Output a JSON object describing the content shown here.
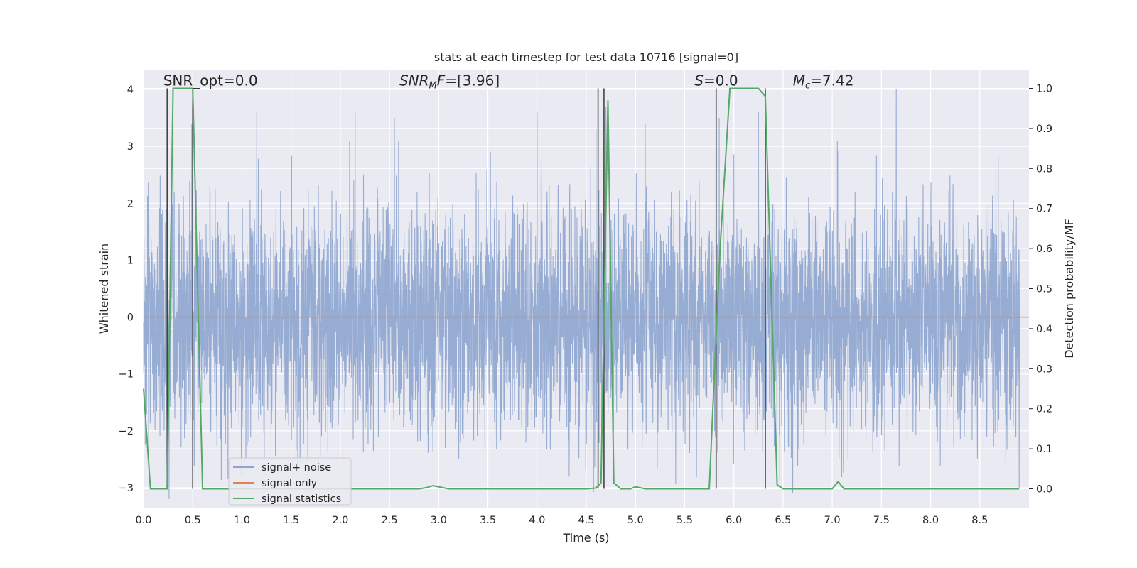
{
  "chart_data": {
    "type": "line",
    "title": "stats at each timestep for test data 10716 [signal=0]",
    "xlabel": "Time (s)",
    "ylabel_left": "Whitened strain",
    "ylabel_right": "Detection probability/MF",
    "xlim": [
      0.0,
      9.0
    ],
    "ylim_left": [
      -3.35,
      4.35
    ],
    "ylim_right": [
      -0.047,
      1.047
    ],
    "x_ticks": [
      "0.0",
      "0.5",
      "1.0",
      "1.5",
      "2.0",
      "2.5",
      "3.0",
      "3.5",
      "4.0",
      "4.5",
      "5.0",
      "5.5",
      "6.0",
      "6.5",
      "7.0",
      "7.5",
      "8.0",
      "8.5"
    ],
    "x_tick_values": [
      0,
      0.5,
      1,
      1.5,
      2,
      2.5,
      3,
      3.5,
      4,
      4.5,
      5,
      5.5,
      6,
      6.5,
      7,
      7.5,
      8,
      8.5
    ],
    "y_left_ticks": [
      "−3",
      "−2",
      "−1",
      "0",
      "1",
      "2",
      "3",
      "4"
    ],
    "y_left_tick_values": [
      -3,
      -2,
      -1,
      0,
      1,
      2,
      3,
      4
    ],
    "y_right_ticks": [
      "0.0",
      "0.1",
      "0.2",
      "0.3",
      "0.4",
      "0.5",
      "0.6",
      "0.7",
      "0.8",
      "0.9",
      "1.0"
    ],
    "y_right_tick_values": [
      0,
      0.1,
      0.2,
      0.3,
      0.4,
      0.5,
      0.6,
      0.7,
      0.8,
      0.9,
      1.0
    ],
    "grid": true,
    "legend_position": "lower-left",
    "annotations": [
      {
        "label": "SNR_opt=0.0",
        "x": 0.2,
        "y_right": 1.005
      },
      {
        "label": "SNR_MF=[3.96]",
        "x": 2.6,
        "y_right": 1.005
      },
      {
        "label": "S=0.0",
        "x": 5.6,
        "y_right": 1.005
      },
      {
        "label": "M_c=7.42",
        "x": 6.6,
        "y_right": 1.005
      }
    ],
    "annotation_text": {
      "snr_opt": "SNR_opt=0.0",
      "snr_mf_main": "SNR",
      "snr_mf_sub": "M",
      "snr_mf_tail_italic": "F",
      "snr_mf_tail": "=[3.96]",
      "s_italic": "S",
      "s_tail": "=0.0",
      "mc_main": "M",
      "mc_sub": "c",
      "mc_tail": "=7.42"
    },
    "series": [
      {
        "name": "signal+ noise",
        "axis": "left",
        "color": "#8ea5cf",
        "kind": "dense-noise",
        "sigma": 1.0,
        "n_points": 4600,
        "peaks": [
          {
            "x": 0.26,
            "y": -3.2
          },
          {
            "x": 0.3,
            "y": 3.45
          },
          {
            "x": 0.49,
            "y": 3.4
          },
          {
            "x": 1.15,
            "y": 3.6
          },
          {
            "x": 2.15,
            "y": 3.6
          },
          {
            "x": 2.55,
            "y": 3.5
          },
          {
            "x": 4.0,
            "y": 3.6
          },
          {
            "x": 4.6,
            "y": 3.3
          },
          {
            "x": 4.7,
            "y": 3.7
          },
          {
            "x": 5.1,
            "y": 3.4
          },
          {
            "x": 5.85,
            "y": 3.5
          },
          {
            "x": 6.25,
            "y": 3.6
          },
          {
            "x": 7.65,
            "y": 4.0
          },
          {
            "x": 8.9,
            "y": -3.0
          }
        ]
      },
      {
        "name": "signal only",
        "axis": "left",
        "color": "#dd8452",
        "x": [
          0.0,
          9.0
        ],
        "y": [
          0.0,
          0.0
        ]
      },
      {
        "name": "signal statistics",
        "axis": "right",
        "color": "#55a868",
        "x": [
          0.0,
          0.07,
          0.17,
          0.24,
          0.3,
          0.5,
          0.6,
          0.65,
          1.0,
          2.0,
          2.8,
          2.88,
          2.94,
          3.0,
          3.1,
          4.0,
          4.5,
          4.6,
          4.65,
          4.72,
          4.78,
          4.85,
          4.95,
          5.0,
          5.1,
          5.5,
          5.75,
          5.86,
          5.96,
          6.25,
          6.32,
          6.44,
          6.5,
          7.0,
          7.06,
          7.12,
          8.9
        ],
        "y": [
          0.25,
          0.0,
          0.0,
          0.0,
          1.0,
          1.0,
          0.0,
          0.0,
          0.0,
          0.0,
          0.0,
          0.003,
          0.008,
          0.005,
          0.0,
          0.0,
          0.0,
          0.002,
          0.015,
          0.97,
          0.015,
          0.0,
          0.0,
          0.005,
          0.0,
          0.0,
          0.0,
          0.6,
          1.0,
          1.0,
          0.98,
          0.01,
          0.0,
          0.0,
          0.018,
          0.0,
          0.0
        ]
      }
    ],
    "vertical_lines": {
      "color": "#444444",
      "x": [
        0.24,
        0.5,
        4.62,
        4.68,
        5.82,
        6.32
      ],
      "y_range_right": [
        0.0,
        1.0
      ]
    }
  }
}
